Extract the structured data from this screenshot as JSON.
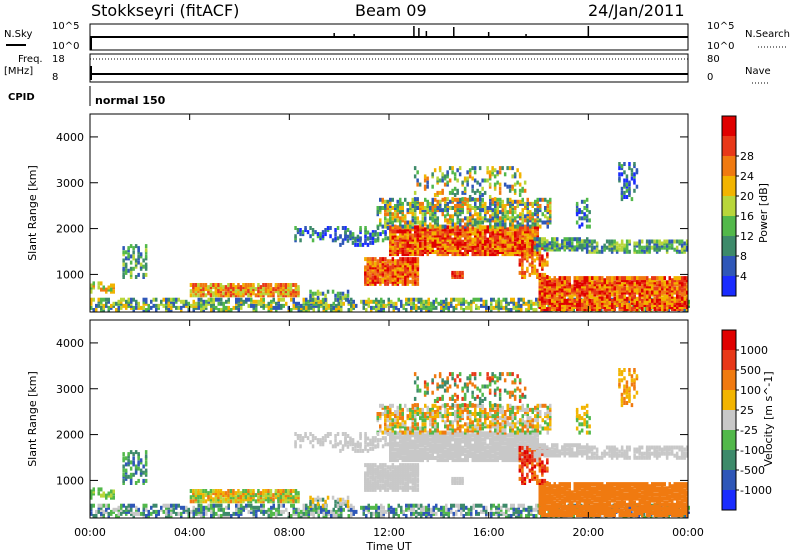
{
  "header": {
    "station": "Stokkseyri (fitACF)",
    "beam": "Beam 09",
    "date": "24/Jan/2011"
  },
  "labels": {
    "nsky": "N.Sky",
    "freq": "Freq.",
    "mhz": "[MHz]",
    "cpid": "CPID",
    "nsearch": "N.Search",
    "nave": "Nave",
    "nsky_top": "10^5",
    "nsky_bottom": "10^0",
    "nsearch_top": "10^5",
    "nsearch_bottom": "10^0",
    "freq_top": "18",
    "freq_bottom": "8",
    "nave_top": "80",
    "nave_bottom": "0",
    "cpid_value": "normal 150"
  },
  "colors": {
    "power_scale": [
      "#1a2cff",
      "#2f57b8",
      "#3d8a6a",
      "#52b84a",
      "#b8d63a",
      "#f2b400",
      "#f07a10",
      "#e83818",
      "#e00000"
    ],
    "velocity_scale": [
      "#1a2cff",
      "#2f57b8",
      "#3d8a6a",
      "#52b84a",
      "#c8c8c8",
      "#f2b400",
      "#f07a10",
      "#e83818",
      "#e00000"
    ],
    "ground_scatter": "#c8c8c8"
  },
  "chart_data": [
    {
      "type": "heatmap",
      "title": "Power",
      "ylabel": "Slant Range [km]",
      "xlabel": "Time UT",
      "x_ticks": [
        "00:00",
        "04:00",
        "08:00",
        "12:00",
        "16:00",
        "20:00",
        "00:00"
      ],
      "y_ticks": [
        "1000",
        "2000",
        "3000",
        "4000"
      ],
      "ylim": [
        180,
        4500
      ],
      "xlim_hours": [
        0,
        24
      ],
      "colorbar": {
        "label": "Power [dB]",
        "ticks": [
          "4",
          "8",
          "12",
          "16",
          "20",
          "24",
          "28"
        ],
        "range": [
          0,
          30
        ]
      }
    },
    {
      "type": "heatmap",
      "title": "Velocity",
      "ylabel": "Slant Range [km]",
      "xlabel": "Time UT",
      "x_ticks": [
        "00:00",
        "04:00",
        "08:00",
        "12:00",
        "16:00",
        "20:00",
        "00:00"
      ],
      "y_ticks": [
        "1000",
        "2000",
        "3000",
        "4000"
      ],
      "ylim": [
        180,
        4500
      ],
      "xlim_hours": [
        0,
        24
      ],
      "colorbar": {
        "label": "Velocity [m s^-1]",
        "ticks": [
          "1000",
          "500",
          "100",
          "25",
          "-25",
          "-100",
          "-500",
          "-1000"
        ]
      }
    }
  ],
  "xaxis": {
    "label": "Time UT"
  }
}
